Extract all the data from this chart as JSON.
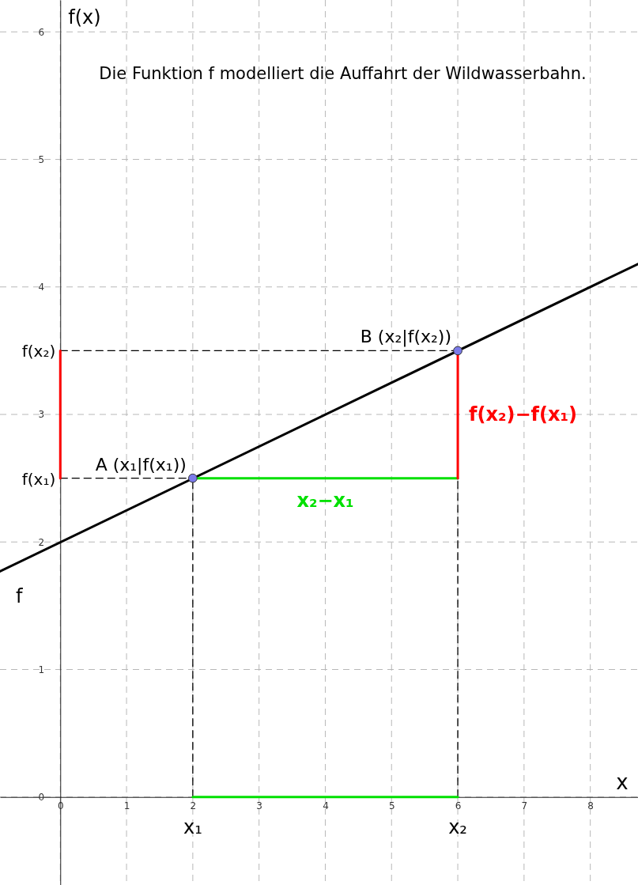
{
  "chart_data": {
    "type": "line",
    "title": "Die Funktion f modelliert die Auffahrt der Wildwasserbahn.",
    "xlabel": "x",
    "ylabel": "f(x)",
    "xlim": [
      -0.91,
      8.72
    ],
    "ylim": [
      -0.69,
      6.25
    ],
    "xticks": [
      0,
      1,
      2,
      3,
      4,
      5,
      6,
      7,
      8
    ],
    "yticks": [
      0,
      1,
      2,
      3,
      4,
      5,
      6
    ],
    "grid": true,
    "series": [
      {
        "type": "line",
        "name": "f",
        "color": "#000000",
        "x": [
          -0.91,
          8.72
        ],
        "values": [
          1.77,
          4.18
        ],
        "line_style": "solid"
      },
      {
        "type": "line",
        "color": "#000000",
        "x": [
          2,
          2
        ],
        "values": [
          0,
          2.5
        ],
        "line_style": "dashed"
      },
      {
        "type": "line",
        "color": "#000000",
        "x": [
          0,
          2
        ],
        "values": [
          2.5,
          2.5
        ],
        "line_style": "dashed"
      },
      {
        "type": "line",
        "color": "#000000",
        "x": [
          0,
          6
        ],
        "values": [
          3.5,
          3.5
        ],
        "line_style": "dashed"
      },
      {
        "type": "line",
        "color": "#000000",
        "x": [
          6,
          6
        ],
        "values": [
          0,
          2.5
        ],
        "line_style": "dashed"
      },
      {
        "type": "line",
        "name": "x₂−x₁",
        "color": "#00e000",
        "x": [
          2,
          6
        ],
        "values": [
          2.5,
          2.5
        ],
        "line_style": "solid"
      },
      {
        "type": "line",
        "name": "f(x₂)−f(x₁)",
        "color": "#ff0000",
        "x": [
          6,
          6
        ],
        "values": [
          2.5,
          3.5
        ],
        "line_style": "solid"
      },
      {
        "type": "line",
        "color": "#00e000",
        "x": [
          2,
          6
        ],
        "values": [
          0,
          0
        ],
        "line_style": "solid"
      },
      {
        "type": "line",
        "color": "#ff0000",
        "x": [
          0,
          0
        ],
        "values": [
          2.5,
          3.5
        ],
        "line_style": "solid"
      },
      {
        "type": "scatter",
        "color": "#7b7bea",
        "x": [
          2,
          6
        ],
        "values": [
          2.5,
          3.5
        ],
        "marker": "circle"
      }
    ],
    "annotations": [
      {
        "text": "A (x₁|f(x₁))",
        "x": 2,
        "y": 2.5
      },
      {
        "text": "B (x₂|f(x₂))",
        "x": 6,
        "y": 3.5
      },
      {
        "text": "x₁",
        "x": 2,
        "y": 0
      },
      {
        "text": "x₂",
        "x": 6,
        "y": 0
      },
      {
        "text": "f(x₁)",
        "x": 0,
        "y": 2.5
      },
      {
        "text": "f(x₂)",
        "x": 0,
        "y": 3.5
      }
    ]
  }
}
